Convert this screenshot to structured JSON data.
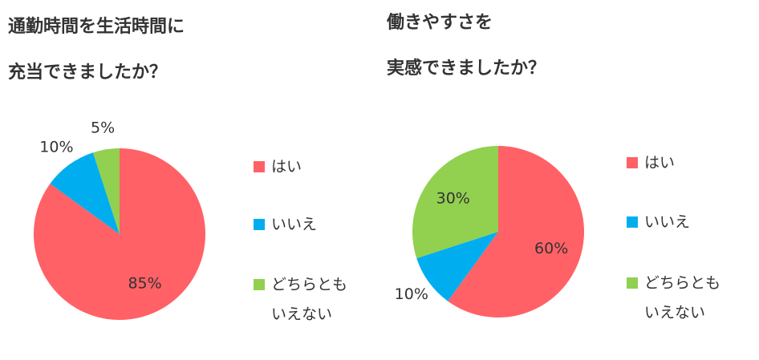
{
  "chart_data": [
    {
      "type": "pie",
      "title": [
        "通勤時間を生活時間に",
        "充当できましたか？"
      ],
      "categories": [
        "はい",
        "いいえ",
        "どちらともいえない"
      ],
      "values": [
        85,
        10,
        5
      ],
      "value_labels": [
        "85%",
        "10%",
        "5%"
      ],
      "colors": [
        "#ff6166",
        "#00aeef",
        "#92d050"
      ],
      "legend": "right"
    },
    {
      "type": "pie",
      "title": [
        "働きやすさを",
        "実感できましたか？"
      ],
      "categories": [
        "はい",
        "いいえ",
        "どちらともいえない"
      ],
      "values": [
        60,
        10,
        30
      ],
      "value_labels": [
        "60%",
        "10%",
        "30%"
      ],
      "colors": [
        "#ff6166",
        "#00aeef",
        "#92d050"
      ],
      "legend": "right"
    }
  ]
}
